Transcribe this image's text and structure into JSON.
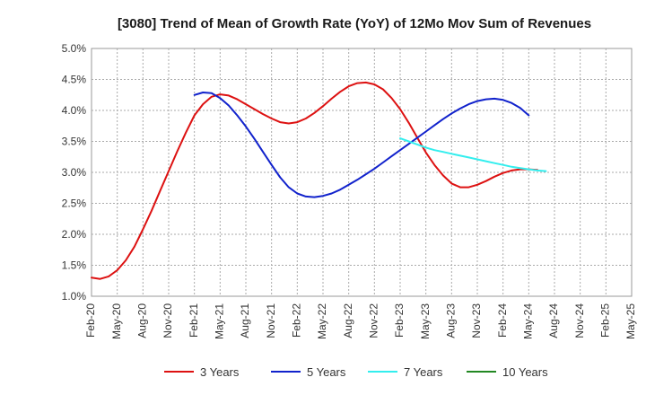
{
  "chart_data": {
    "type": "line",
    "title": "[3080]  Trend of Mean of Growth Rate (YoY) of 12Mo Mov Sum of Revenues",
    "xlabel": "",
    "ylabel": "",
    "ylim": [
      1.0,
      5.0
    ],
    "y_ticks": [
      "1.0%",
      "1.5%",
      "2.0%",
      "2.5%",
      "3.0%",
      "3.5%",
      "4.0%",
      "4.5%",
      "5.0%"
    ],
    "y_tick_values": [
      1.0,
      1.5,
      2.0,
      2.5,
      3.0,
      3.5,
      4.0,
      4.5,
      5.0
    ],
    "x_ticks": [
      "Feb-20",
      "May-20",
      "Aug-20",
      "Nov-20",
      "Feb-21",
      "May-21",
      "Aug-21",
      "Nov-21",
      "Feb-22",
      "May-22",
      "Aug-22",
      "Nov-22",
      "Feb-23",
      "May-23",
      "Aug-23",
      "Nov-23",
      "Feb-24",
      "May-24",
      "Aug-24",
      "Nov-24",
      "Feb-25",
      "May-25"
    ],
    "x_range_months": [
      0,
      63
    ],
    "grid": true,
    "legend_position": "bottom",
    "series": [
      {
        "name": "3 Years",
        "color": "#dd1111",
        "points": [
          [
            0,
            1.3
          ],
          [
            1,
            1.28
          ],
          [
            2,
            1.32
          ],
          [
            3,
            1.42
          ],
          [
            4,
            1.58
          ],
          [
            5,
            1.8
          ],
          [
            6,
            2.08
          ],
          [
            7,
            2.38
          ],
          [
            8,
            2.7
          ],
          [
            9,
            3.02
          ],
          [
            10,
            3.34
          ],
          [
            11,
            3.64
          ],
          [
            12,
            3.92
          ],
          [
            13,
            4.1
          ],
          [
            14,
            4.22
          ],
          [
            15,
            4.26
          ],
          [
            16,
            4.24
          ],
          [
            17,
            4.18
          ],
          [
            18,
            4.1
          ],
          [
            19,
            4.02
          ],
          [
            20,
            3.94
          ],
          [
            21,
            3.87
          ],
          [
            22,
            3.81
          ],
          [
            23,
            3.79
          ],
          [
            24,
            3.81
          ],
          [
            25,
            3.87
          ],
          [
            26,
            3.96
          ],
          [
            27,
            4.07
          ],
          [
            28,
            4.19
          ],
          [
            29,
            4.3
          ],
          [
            30,
            4.39
          ],
          [
            31,
            4.44
          ],
          [
            32,
            4.45
          ],
          [
            33,
            4.42
          ],
          [
            34,
            4.34
          ],
          [
            35,
            4.2
          ],
          [
            36,
            4.02
          ],
          [
            37,
            3.8
          ],
          [
            38,
            3.56
          ],
          [
            39,
            3.32
          ],
          [
            40,
            3.12
          ],
          [
            41,
            2.95
          ],
          [
            42,
            2.82
          ],
          [
            43,
            2.76
          ],
          [
            44,
            2.76
          ],
          [
            45,
            2.8
          ],
          [
            46,
            2.86
          ],
          [
            47,
            2.93
          ],
          [
            48,
            2.99
          ],
          [
            49,
            3.03
          ],
          [
            50,
            3.05
          ],
          [
            51,
            3.05
          ],
          [
            52,
            3.04
          ]
        ]
      },
      {
        "name": "5 Years",
        "color": "#1122cc",
        "points": [
          [
            12,
            4.25
          ],
          [
            13,
            4.29
          ],
          [
            14,
            4.28
          ],
          [
            15,
            4.2
          ],
          [
            16,
            4.08
          ],
          [
            17,
            3.92
          ],
          [
            18,
            3.74
          ],
          [
            19,
            3.54
          ],
          [
            20,
            3.33
          ],
          [
            21,
            3.12
          ],
          [
            22,
            2.92
          ],
          [
            23,
            2.76
          ],
          [
            24,
            2.66
          ],
          [
            25,
            2.61
          ],
          [
            26,
            2.6
          ],
          [
            27,
            2.62
          ],
          [
            28,
            2.66
          ],
          [
            29,
            2.72
          ],
          [
            30,
            2.8
          ],
          [
            31,
            2.88
          ],
          [
            32,
            2.97
          ],
          [
            33,
            3.06
          ],
          [
            34,
            3.16
          ],
          [
            35,
            3.26
          ],
          [
            36,
            3.36
          ],
          [
            37,
            3.46
          ],
          [
            38,
            3.56
          ],
          [
            39,
            3.66
          ],
          [
            40,
            3.76
          ],
          [
            41,
            3.86
          ],
          [
            42,
            3.95
          ],
          [
            43,
            4.03
          ],
          [
            44,
            4.1
          ],
          [
            45,
            4.15
          ],
          [
            46,
            4.18
          ],
          [
            47,
            4.19
          ],
          [
            48,
            4.17
          ],
          [
            49,
            4.12
          ],
          [
            50,
            4.04
          ],
          [
            51,
            3.92
          ]
        ]
      },
      {
        "name": "7 Years",
        "color": "#33eeee",
        "points": [
          [
            36,
            3.55
          ],
          [
            37,
            3.5
          ],
          [
            38,
            3.45
          ],
          [
            39,
            3.4
          ],
          [
            40,
            3.36
          ],
          [
            41,
            3.33
          ],
          [
            42,
            3.3
          ],
          [
            43,
            3.27
          ],
          [
            44,
            3.24
          ],
          [
            45,
            3.21
          ],
          [
            46,
            3.18
          ],
          [
            47,
            3.15
          ],
          [
            48,
            3.12
          ],
          [
            49,
            3.09
          ],
          [
            50,
            3.07
          ],
          [
            51,
            3.05
          ],
          [
            52,
            3.03
          ],
          [
            53,
            3.02
          ]
        ]
      },
      {
        "name": "10 Years",
        "color": "#228822",
        "points": []
      }
    ]
  }
}
